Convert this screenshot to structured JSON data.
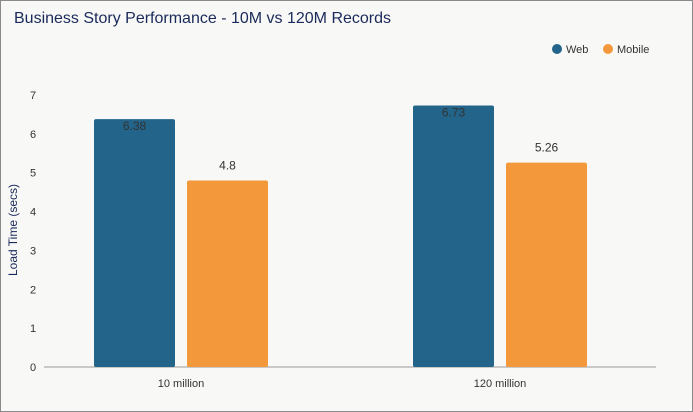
{
  "chart_data": {
    "type": "bar",
    "title": "Business Story Performance - 10M vs 120M Records",
    "xlabel": "",
    "ylabel": "Load Time (secs)",
    "ylim": [
      0,
      7
    ],
    "yticks": [
      0,
      1,
      2,
      3,
      4,
      5,
      6,
      7
    ],
    "categories": [
      "10 million",
      "120 million"
    ],
    "series": [
      {
        "name": "Web",
        "color": "#22648a",
        "values": [
          6.38,
          6.73
        ],
        "labels": [
          "6.38",
          "6.73"
        ]
      },
      {
        "name": "Mobile",
        "color": "#f3993b",
        "values": [
          4.8,
          5.26
        ],
        "labels": [
          "4.8",
          "5.26"
        ]
      }
    ],
    "legend_position": "top-right",
    "grid": false
  }
}
